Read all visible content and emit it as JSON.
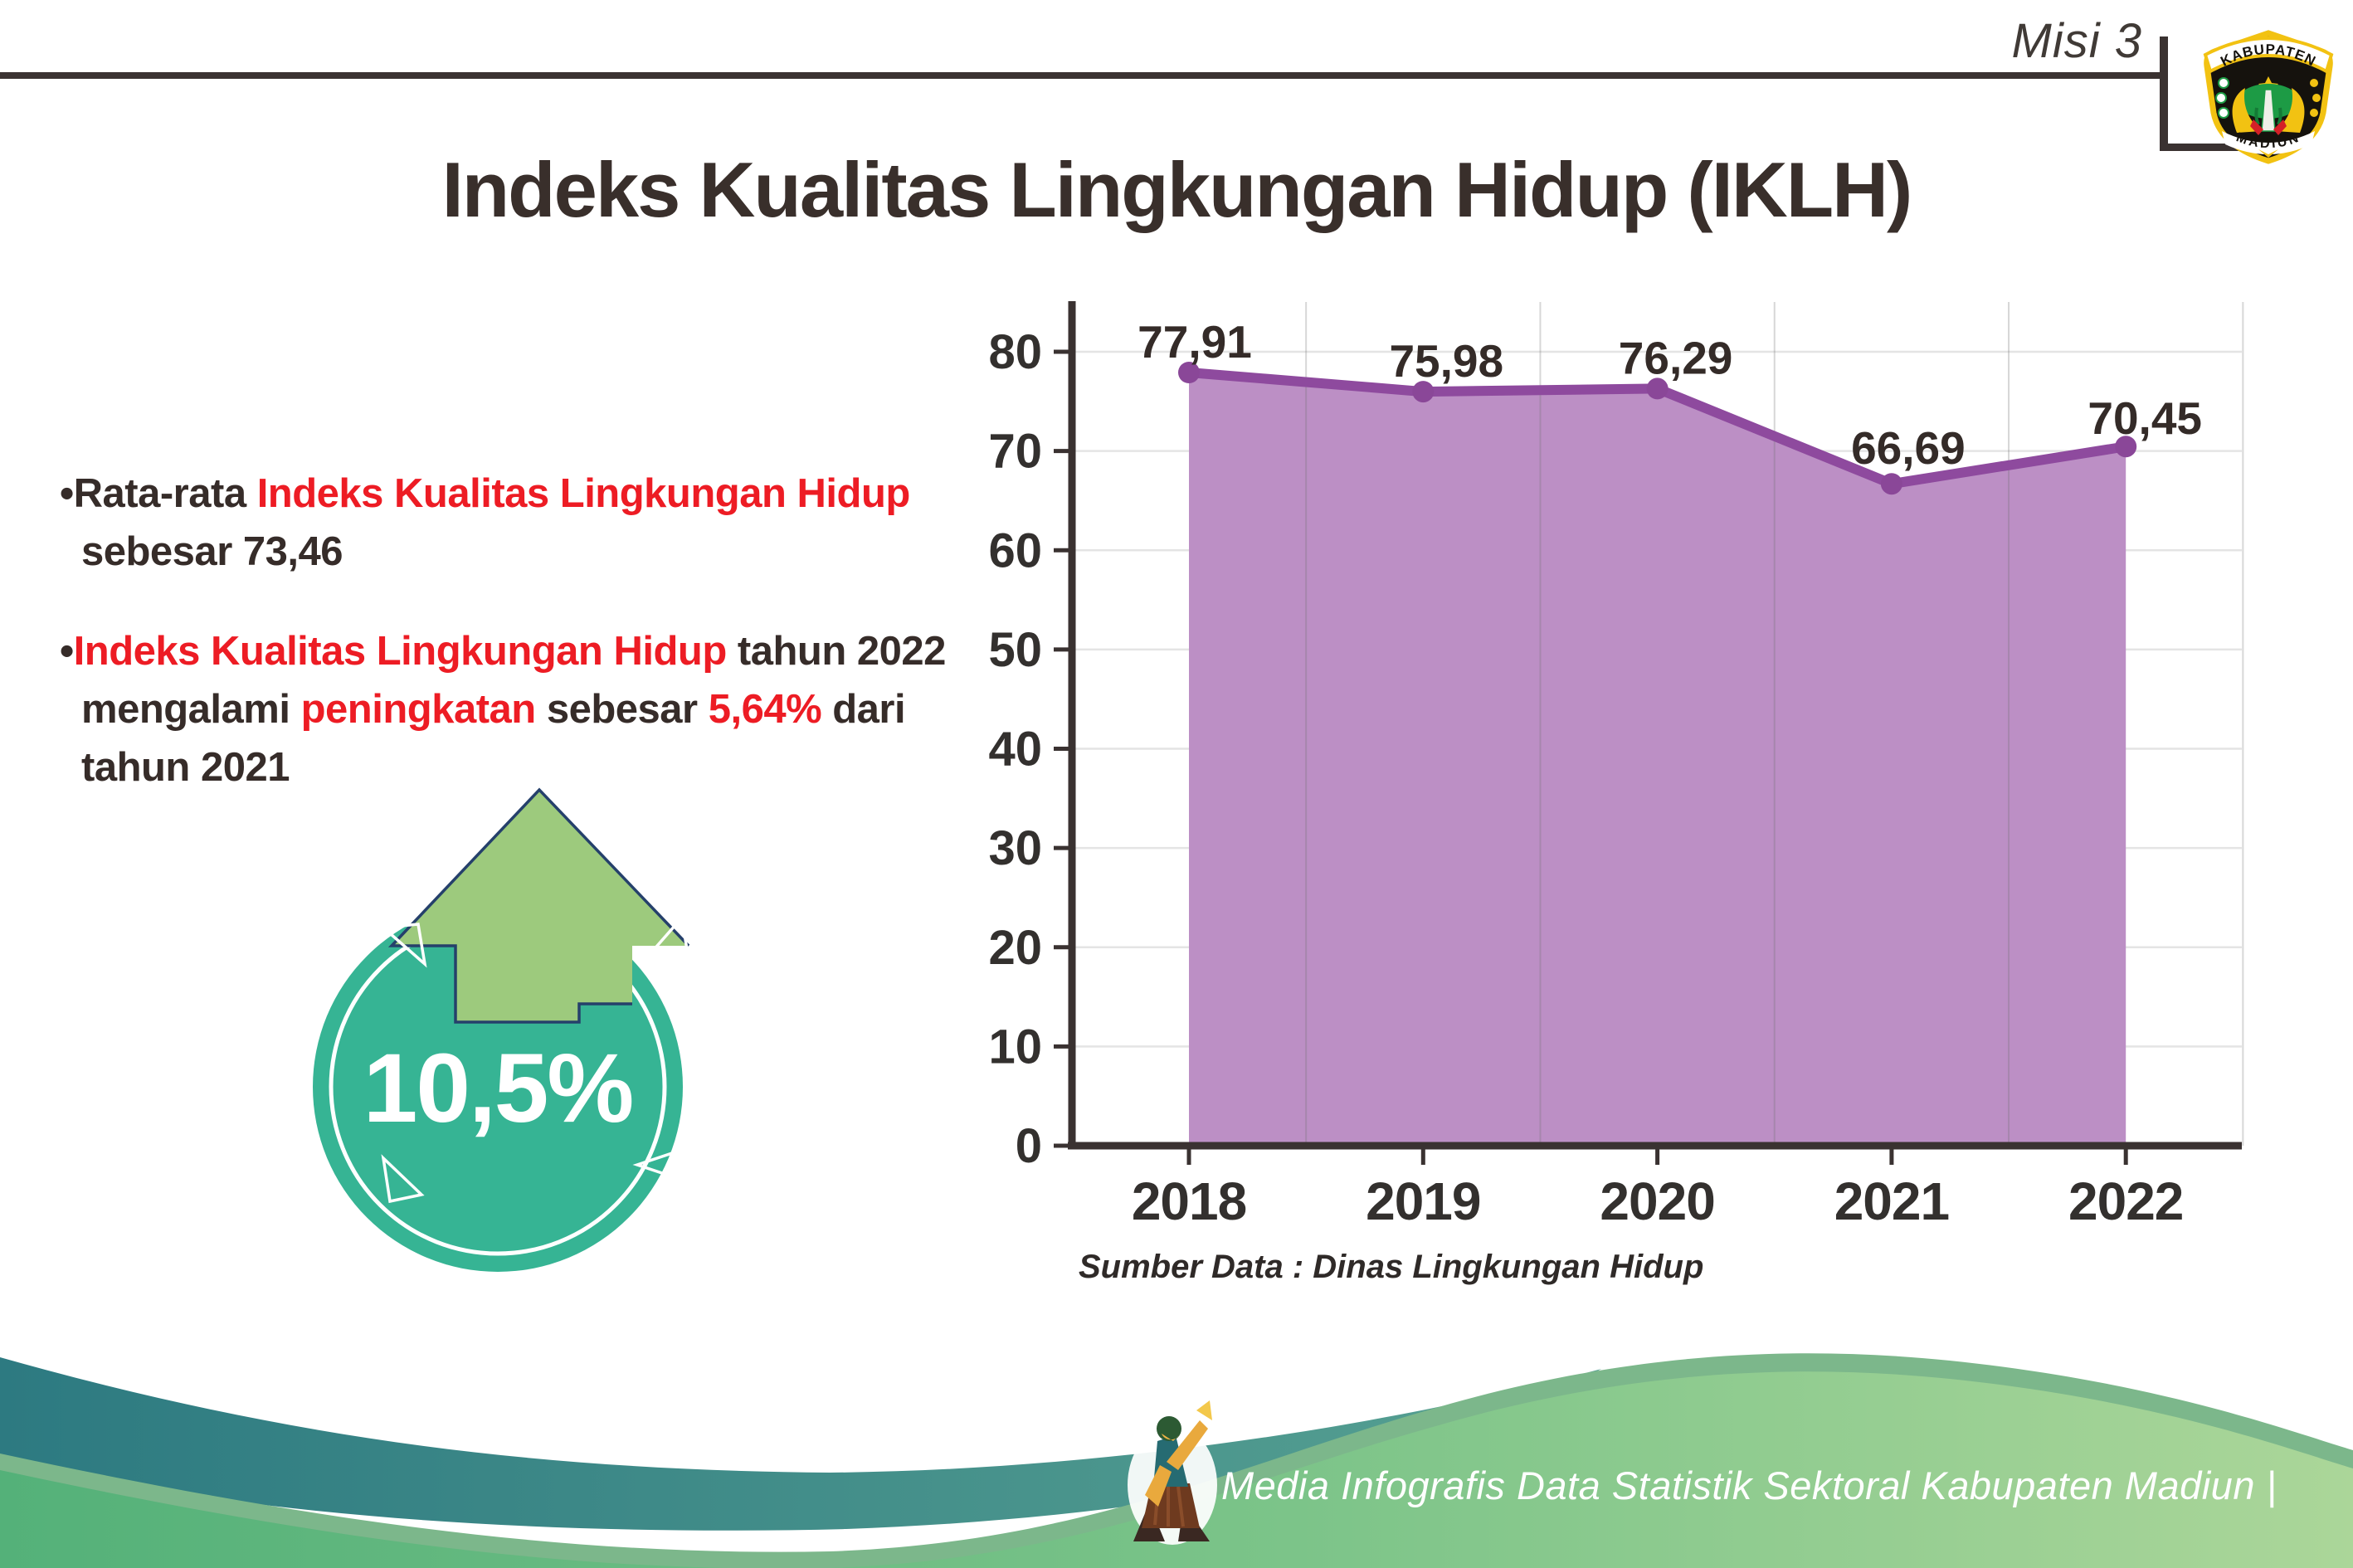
{
  "header": {
    "misi_label": "Misi 3",
    "logo": {
      "name": "kabupaten-madiun-logo",
      "top_text": "KABUPATEN",
      "bottom_text": "MADIUN"
    }
  },
  "title": "Indeks Kualitas Lingkungan Hidup (IKLH)",
  "bullets": [
    {
      "segments": [
        {
          "text": "•",
          "color": "dark"
        },
        {
          "text": "Rata-rata ",
          "color": "dark"
        },
        {
          "text": "Indeks Kualitas Lingkungan Hidup",
          "color": "red"
        },
        {
          "text": "\nsebesar 73,46",
          "color": "dark"
        }
      ]
    },
    {
      "segments": [
        {
          "text": "•",
          "color": "dark"
        },
        {
          "text": "Indeks Kualitas Lingkungan Hidup",
          "color": "red"
        },
        {
          "text": " tahun 2022\nmengalami ",
          "color": "dark"
        },
        {
          "text": "peningkatan",
          "color": "red"
        },
        {
          "text": " sebesar ",
          "color": "dark"
        },
        {
          "text": "5,64%",
          "color": "red"
        },
        {
          "text": " dari\ntahun 2021",
          "color": "dark"
        }
      ]
    }
  ],
  "badge": {
    "percent": "10,5%",
    "icon": "up-arrow-icon",
    "circle_color": "#36b494",
    "arrow_color": "#9dca7d"
  },
  "chart_data": {
    "type": "area",
    "categories": [
      "2018",
      "2019",
      "2020",
      "2021",
      "2022"
    ],
    "values": [
      77.91,
      75.98,
      76.29,
      66.69,
      70.45
    ],
    "point_labels": [
      "77,91",
      "75,98",
      "76,29",
      "66,69",
      "70,45"
    ],
    "ylim": [
      0,
      80
    ],
    "yticks": [
      0,
      10,
      20,
      30,
      40,
      50,
      60,
      70,
      80
    ],
    "grid": true,
    "legend": false,
    "source_note": "Sumber Data : Dinas Lingkungan Hidup",
    "line_color": "#8e4a9e",
    "fill_color": "#bc8fc5",
    "axis_color": "#3a3231"
  },
  "footer": {
    "text": "Media Infografis Data Statistik Sektoral Kabupaten Madiun |",
    "mascot": "dancer-mascot-icon",
    "teal_color": "#2f7e83",
    "green_color": "#5ab37c"
  }
}
